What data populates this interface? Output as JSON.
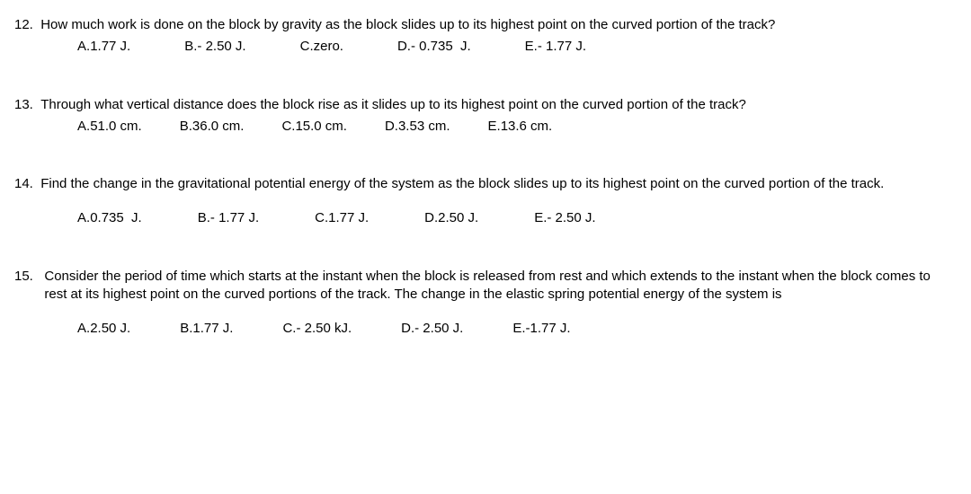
{
  "questions": [
    {
      "number": "12.",
      "text": "How much work is done on the block by gravity as the block slides up to its highest point on the curved portion of the track?",
      "choices": [
        {
          "letter": "A.",
          "value": "1.77 J."
        },
        {
          "letter": "B.",
          "value": "- 2.50 J."
        },
        {
          "letter": "C.",
          "value": "zero."
        },
        {
          "letter": "D.",
          "value": "- 0.735  J."
        },
        {
          "letter": "E.",
          "value": "- 1.77 J."
        }
      ]
    },
    {
      "number": "13.",
      "text": "Through what vertical distance does the block rise as it slides up to its highest point on the curved portion of the track?",
      "choices": [
        {
          "letter": "A.",
          "value": "51.0 cm."
        },
        {
          "letter": "B.",
          "value": "36.0 cm."
        },
        {
          "letter": "C.",
          "value": "15.0 cm."
        },
        {
          "letter": "D.",
          "value": "3.53 cm."
        },
        {
          "letter": "E.",
          "value": "13.6 cm."
        }
      ]
    },
    {
      "number": "14.",
      "text": "Find the change in the gravitational potential energy of the system as the block slides up to its highest point on the curved portion of the track.",
      "choices": [
        {
          "letter": "A.",
          "value": "0.735  J."
        },
        {
          "letter": "B.",
          "value": "- 1.77 J."
        },
        {
          "letter": "C.",
          "value": "1.77 J."
        },
        {
          "letter": "D.",
          "value": "2.50 J."
        },
        {
          "letter": "E.",
          "value": "- 2.50 J."
        }
      ]
    },
    {
      "number": "15.",
      "text": "Consider the period of time which starts at the instant when the block is released from rest and which extends to the instant when the block comes to rest at its highest point on the curved portions of the track.  The change in the elastic spring potential energy of the system is",
      "choices": [
        {
          "letter": "A.",
          "value": "2.50 J."
        },
        {
          "letter": "B.",
          "value": "1.77 J."
        },
        {
          "letter": "C.",
          "value": "- 2.50 kJ."
        },
        {
          "letter": "D.",
          "value": "- 2.50 J."
        },
        {
          "letter": "E.",
          "value": "-1.77 J."
        }
      ]
    }
  ]
}
